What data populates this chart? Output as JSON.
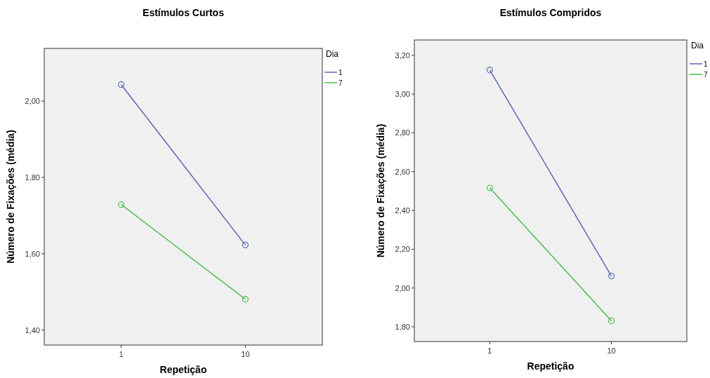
{
  "chart_data": [
    {
      "type": "line",
      "title": "Estímulos Curtos",
      "xlabel": "Repetição",
      "ylabel": "Número de Fixações (média)",
      "legend_title": "Dia",
      "legend": "top right",
      "marker": "circle",
      "grid": false,
      "categories": [
        "1",
        "10"
      ],
      "ylim": [
        1.361,
        2.138
      ],
      "yticks": [
        {
          "value": 1.4,
          "label": "1,40"
        },
        {
          "value": 1.6,
          "label": "1,60"
        },
        {
          "value": 1.8,
          "label": "1,80"
        },
        {
          "value": 2.0,
          "label": "2,00"
        }
      ],
      "series": [
        {
          "name": "1",
          "color": "#5b68b8",
          "values": [
            2.043,
            1.623
          ]
        },
        {
          "name": "7",
          "color": "#4cbf4c",
          "values": [
            1.729,
            1.481
          ]
        }
      ]
    },
    {
      "type": "line",
      "title": "Estímulos Compridos",
      "xlabel": "Repetição",
      "ylabel": "Número de Fixações (média)",
      "legend_title": "Dia",
      "legend": "top right",
      "marker": "circle",
      "grid": false,
      "categories": [
        "1",
        "10"
      ],
      "ylim": [
        1.724,
        3.279
      ],
      "yticks": [
        {
          "value": 1.8,
          "label": "1,80"
        },
        {
          "value": 2.0,
          "label": "2,00"
        },
        {
          "value": 2.2,
          "label": "2,20"
        },
        {
          "value": 2.4,
          "label": "2,40"
        },
        {
          "value": 2.6,
          "label": "2,60"
        },
        {
          "value": 2.8,
          "label": "2,80"
        },
        {
          "value": 3.0,
          "label": "3,00"
        },
        {
          "value": 3.2,
          "label": "3,20"
        }
      ],
      "series": [
        {
          "name": "1",
          "color": "#5b68b8",
          "values": [
            3.124,
            2.062
          ]
        },
        {
          "name": "7",
          "color": "#4cbf4c",
          "values": [
            2.516,
            1.831
          ]
        }
      ]
    }
  ]
}
